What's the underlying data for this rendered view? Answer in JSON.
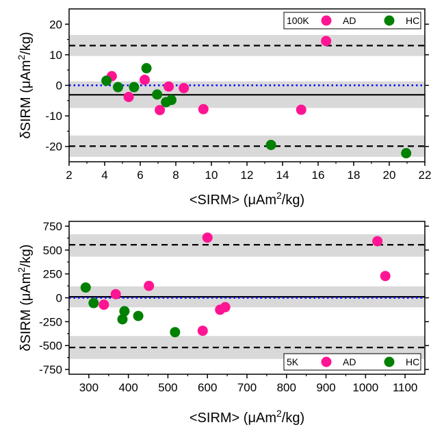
{
  "chart_data": [
    {
      "type": "scatter",
      "panel_label": "100K",
      "xlabel": "<SIRM> (μAm²/kg)",
      "ylabel": "δSIRM (μAm²/kg)",
      "xlim": [
        2,
        22
      ],
      "ylim": [
        -25,
        25
      ],
      "xticks": [
        2,
        4,
        6,
        8,
        10,
        12,
        14,
        16,
        18,
        20,
        22
      ],
      "yticks": [
        -20,
        -10,
        0,
        10,
        20
      ],
      "legend_position": "top-right",
      "reference_lines": {
        "mean_bias": -3.1,
        "upper_limit": 13.0,
        "lower_limit": -19.9,
        "zero": 0
      },
      "shaded_bands": [
        [
          9.6,
          16.5
        ],
        [
          -7.4,
          1.3
        ],
        [
          -23.4,
          -16.4
        ]
      ],
      "series": [
        {
          "name": "AD",
          "color": "#ff1493",
          "points": [
            {
              "x": 4.4,
              "y": 3.0
            },
            {
              "x": 5.35,
              "y": -3.8
            },
            {
              "x": 6.25,
              "y": 1.8
            },
            {
              "x": 7.1,
              "y": -8.1
            },
            {
              "x": 7.6,
              "y": -0.4
            },
            {
              "x": 8.45,
              "y": -0.9
            },
            {
              "x": 9.55,
              "y": -7.8
            },
            {
              "x": 15.05,
              "y": -8.0
            },
            {
              "x": 16.45,
              "y": 14.5
            }
          ]
        },
        {
          "name": "HC",
          "color": "#008000",
          "points": [
            {
              "x": 4.1,
              "y": 1.5
            },
            {
              "x": 4.75,
              "y": -0.6
            },
            {
              "x": 5.65,
              "y": -0.6
            },
            {
              "x": 6.35,
              "y": 5.6
            },
            {
              "x": 6.95,
              "y": -3.0
            },
            {
              "x": 7.45,
              "y": -5.5
            },
            {
              "x": 7.75,
              "y": -4.8
            },
            {
              "x": 13.35,
              "y": -19.5
            },
            {
              "x": 20.95,
              "y": -22.2
            }
          ]
        }
      ]
    },
    {
      "type": "scatter",
      "panel_label": "5K",
      "xlabel": "<SIRM> (μAm²/kg)",
      "ylabel": "δSIRM (μAm²/kg)",
      "xlim": [
        250,
        1150
      ],
      "ylim": [
        -800,
        800
      ],
      "xticks": [
        300,
        400,
        500,
        600,
        700,
        800,
        900,
        1000,
        1100
      ],
      "yticks": [
        -750,
        -500,
        -250,
        0,
        250,
        500,
        750
      ],
      "legend_position": "bottom-right",
      "reference_lines": {
        "mean_bias": 10,
        "upper_limit": 555,
        "lower_limit": -520,
        "zero": 0
      },
      "shaded_bands": [
        [
          430,
          665
        ],
        [
          -100,
          120
        ],
        [
          -640,
          -400
        ]
      ],
      "series": [
        {
          "name": "AD",
          "color": "#ff1493",
          "points": [
            {
              "x": 338,
              "y": -72
            },
            {
              "x": 368,
              "y": 38
            },
            {
              "x": 452,
              "y": 125
            },
            {
              "x": 588,
              "y": -345
            },
            {
              "x": 600,
              "y": 630
            },
            {
              "x": 632,
              "y": -125
            },
            {
              "x": 645,
              "y": -98
            },
            {
              "x": 1030,
              "y": 592
            },
            {
              "x": 1050,
              "y": 228
            }
          ]
        },
        {
          "name": "HC",
          "color": "#008000",
          "points": [
            {
              "x": 292,
              "y": 108
            },
            {
              "x": 312,
              "y": -55
            },
            {
              "x": 385,
              "y": -225
            },
            {
              "x": 390,
              "y": -140
            },
            {
              "x": 425,
              "y": -190
            },
            {
              "x": 518,
              "y": -360
            }
          ]
        }
      ]
    }
  ]
}
